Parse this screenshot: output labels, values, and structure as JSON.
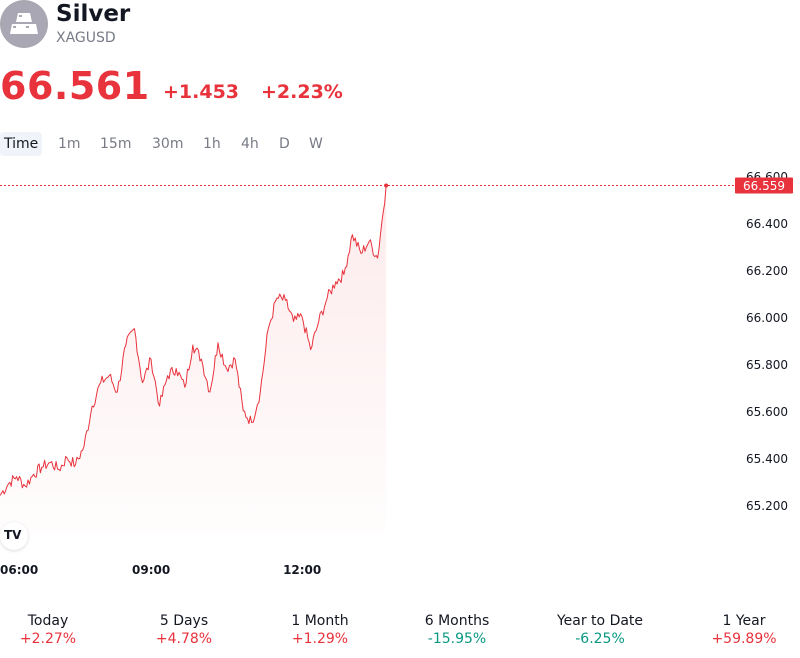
{
  "symbol": {
    "name": "Silver",
    "ticker": "XAGUSD",
    "price": "66.561",
    "change": "+1.453",
    "change_percent": "+2.23%"
  },
  "intervals": [
    "Time",
    "1m",
    "15m",
    "30m",
    "1h",
    "4h",
    "D",
    "W"
  ],
  "active_interval": "Time",
  "colors": {
    "up": "#e8323c",
    "down": "#089981",
    "line": "#e8323c",
    "text": "#131722",
    "muted": "#787b86"
  },
  "chart_data": {
    "type": "area",
    "x_ticks": [
      "06:00",
      "09:00",
      "12:00"
    ],
    "x_tick_hours": [
      6,
      9,
      12
    ],
    "x_range_hours": [
      6,
      20.5
    ],
    "ylim": [
      65.05,
      66.625
    ],
    "y_ticks": [
      65.2,
      65.4,
      65.6,
      65.8,
      66.0,
      66.2,
      66.4,
      66.6
    ],
    "y_tick_labels": [
      "65.200",
      "65.400",
      "65.600",
      "65.800",
      "66.000",
      "66.200",
      "66.400",
      "66.600"
    ],
    "last_value": 66.559,
    "last_value_label": "66.559",
    "series": [
      {
        "x_hours": [
          6.0,
          6.17,
          6.33,
          6.5,
          6.67,
          6.83,
          7.0,
          7.17,
          7.33,
          7.5,
          7.67,
          7.83,
          8.0,
          8.17,
          8.33,
          8.5,
          8.67,
          8.83,
          9.0,
          9.17,
          9.33,
          9.5,
          9.67,
          9.83,
          10.0,
          10.17,
          10.33,
          10.5,
          10.67,
          10.83,
          11.0,
          11.17,
          11.33,
          11.5,
          11.67,
          11.83,
          12.0,
          12.17,
          12.33,
          12.5,
          12.67,
          12.83,
          13.0,
          13.17,
          13.33,
          13.5,
          13.67
        ],
        "values": [
          65.24,
          65.29,
          65.32,
          65.28,
          65.33,
          65.36,
          65.38,
          65.35,
          65.4,
          65.37,
          65.45,
          65.62,
          65.72,
          65.75,
          65.68,
          65.88,
          65.95,
          65.72,
          65.82,
          65.62,
          65.75,
          65.78,
          65.7,
          65.88,
          65.82,
          65.68,
          65.89,
          65.78,
          65.82,
          65.6,
          65.55,
          65.68,
          65.95,
          66.08,
          66.07,
          65.98,
          66.0,
          65.86,
          65.98,
          66.08,
          66.15,
          66.18,
          66.35,
          66.27,
          66.32,
          66.25,
          66.559
        ]
      }
    ]
  },
  "performance": [
    {
      "label": "Today",
      "value": "+2.27%",
      "dir": "up"
    },
    {
      "label": "5 Days",
      "value": "+4.78%",
      "dir": "up"
    },
    {
      "label": "1 Month",
      "value": "+1.29%",
      "dir": "up"
    },
    {
      "label": "6 Months",
      "value": "-15.95%",
      "dir": "down"
    },
    {
      "label": "Year to Date",
      "value": "-6.25%",
      "dir": "down"
    },
    {
      "label": "1 Year",
      "value": "+59.89%",
      "dir": "up"
    }
  ]
}
